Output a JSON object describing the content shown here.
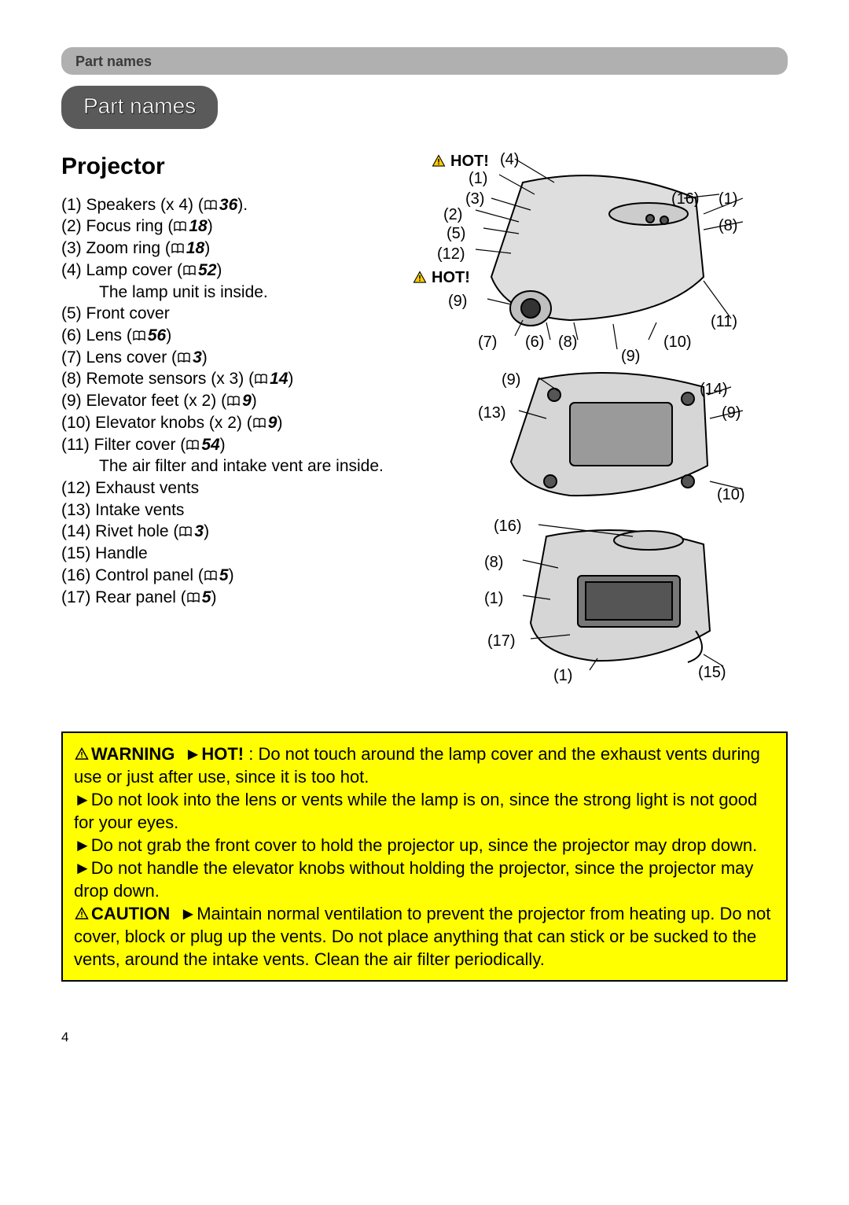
{
  "header": {
    "breadcrumb": "Part names",
    "pill": "Part names"
  },
  "section": {
    "title": "Projector"
  },
  "parts": [
    {
      "n": "(1)",
      "label": "Speakers (x 4)",
      "ref": "36",
      "suffix": "."
    },
    {
      "n": "(2)",
      "label": "Focus ring",
      "ref": "18"
    },
    {
      "n": "(3)",
      "label": "Zoom ring",
      "ref": "18"
    },
    {
      "n": "(4)",
      "label": "Lamp cover",
      "ref": "52",
      "sub": "The lamp unit is inside."
    },
    {
      "n": "(5)",
      "label": "Front cover"
    },
    {
      "n": "(6)",
      "label": "Lens",
      "ref": "56"
    },
    {
      "n": "(7)",
      "label": "Lens cover",
      "ref": "3"
    },
    {
      "n": "(8)",
      "label": "Remote sensors (x 3)",
      "ref": "14"
    },
    {
      "n": "(9)",
      "label": "Elevator feet (x 2)",
      "ref": "9"
    },
    {
      "n": "(10)",
      "label": "Elevator knobs (x 2)",
      "ref": "9"
    },
    {
      "n": "(11)",
      "label": "Filter cover",
      "ref": "54",
      "sub": "The air filter and intake vent are inside."
    },
    {
      "n": "(12)",
      "label": "Exhaust vents"
    },
    {
      "n": "(13)",
      "label": "Intake vents"
    },
    {
      "n": "(14)",
      "label": "Rivet hole",
      "ref": "3"
    },
    {
      "n": "(15)",
      "label": "Handle"
    },
    {
      "n": "(16)",
      "label": "Control panel",
      "ref": "5"
    },
    {
      "n": "(17)",
      "label": "Rear panel",
      "ref": "5"
    }
  ],
  "diagram": {
    "hot1": "HOT!",
    "hot2": "HOT!",
    "callouts_top": [
      "(4)",
      "(1)",
      "(3)",
      "(16)",
      "(1)",
      "(2)",
      "(8)",
      "(5)",
      "(12)",
      "(9)",
      "(11)",
      "(7)",
      "(6)",
      "(8)",
      "(10)",
      "(9)"
    ],
    "callouts_mid": [
      "(9)",
      "(14)",
      "(13)",
      "(9)",
      "(10)"
    ],
    "callouts_bot": [
      "(16)",
      "(8)",
      "(1)",
      "(17)",
      "(1)",
      "(15)"
    ]
  },
  "warning": {
    "warning_label": "WARNING",
    "caution_label": "CAUTION",
    "hot": "HOT!",
    "line1a": " : Do not touch around the lamp cover and the exhaust vents during use or just after use, since it is too hot.",
    "line2": "Do not look into the lens or vents while the lamp is on, since the strong light is not good for your eyes.",
    "line3": "Do not grab the front cover to hold the projector up, since the projector may drop down.",
    "line4": "Do not handle the elevator knobs without holding the projector, since the projector may drop down.",
    "line5": "Maintain normal ventilation to prevent the projector from heating up. Do not cover, block or plug up the vents. Do not place anything that can stick or be sucked to the vents, around the intake vents. Clean the air filter periodically."
  },
  "page": {
    "num": "4"
  },
  "colors": {
    "highlight": "#ffff00",
    "bar": "#b0b0b0",
    "pill": "#5a5a5a"
  }
}
